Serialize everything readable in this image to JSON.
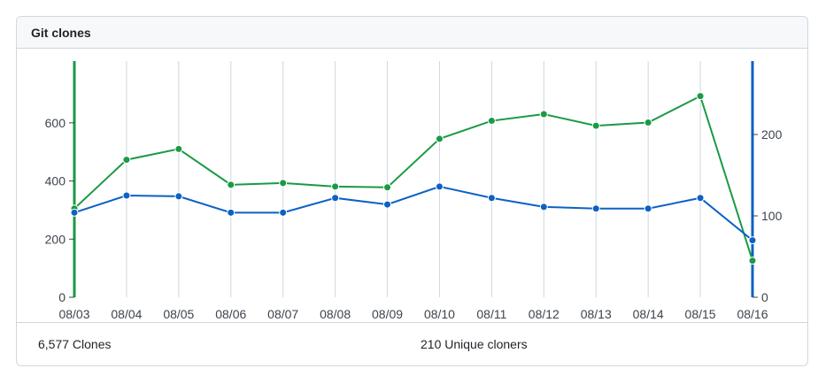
{
  "panel": {
    "title": "Git clones",
    "total_clones_label": "6,577 Clones",
    "unique_cloners_label": "210 Unique cloners"
  },
  "colors": {
    "clones": "#1a9a44",
    "unique": "#0b61c5",
    "grid": "#d0d7de",
    "text": "#3d444d"
  },
  "chart_data": {
    "type": "line",
    "categories": [
      "08/03",
      "08/04",
      "08/05",
      "08/06",
      "08/07",
      "08/08",
      "08/09",
      "08/10",
      "08/11",
      "08/12",
      "08/13",
      "08/14",
      "08/15",
      "08/16"
    ],
    "series": [
      {
        "axis": "left",
        "color": "#1a9a44",
        "values": [
          305,
          473,
          510,
          387,
          393,
          381,
          378,
          545,
          607,
          630,
          590,
          601,
          692,
          126
        ]
      },
      {
        "axis": "right",
        "color": "#0b61c5",
        "values": [
          104,
          125,
          124,
          104,
          104,
          122,
          114,
          136,
          122,
          111,
          109,
          109,
          122,
          70
        ]
      }
    ],
    "left_axis": {
      "ylim": [
        0,
        700
      ],
      "ticks": [
        0,
        200,
        400,
        600
      ]
    },
    "right_axis": {
      "ylim": [
        0,
        250
      ],
      "ticks": [
        0,
        100,
        200
      ]
    },
    "xlabel": "",
    "ylabel": "",
    "grid": "vertical"
  }
}
